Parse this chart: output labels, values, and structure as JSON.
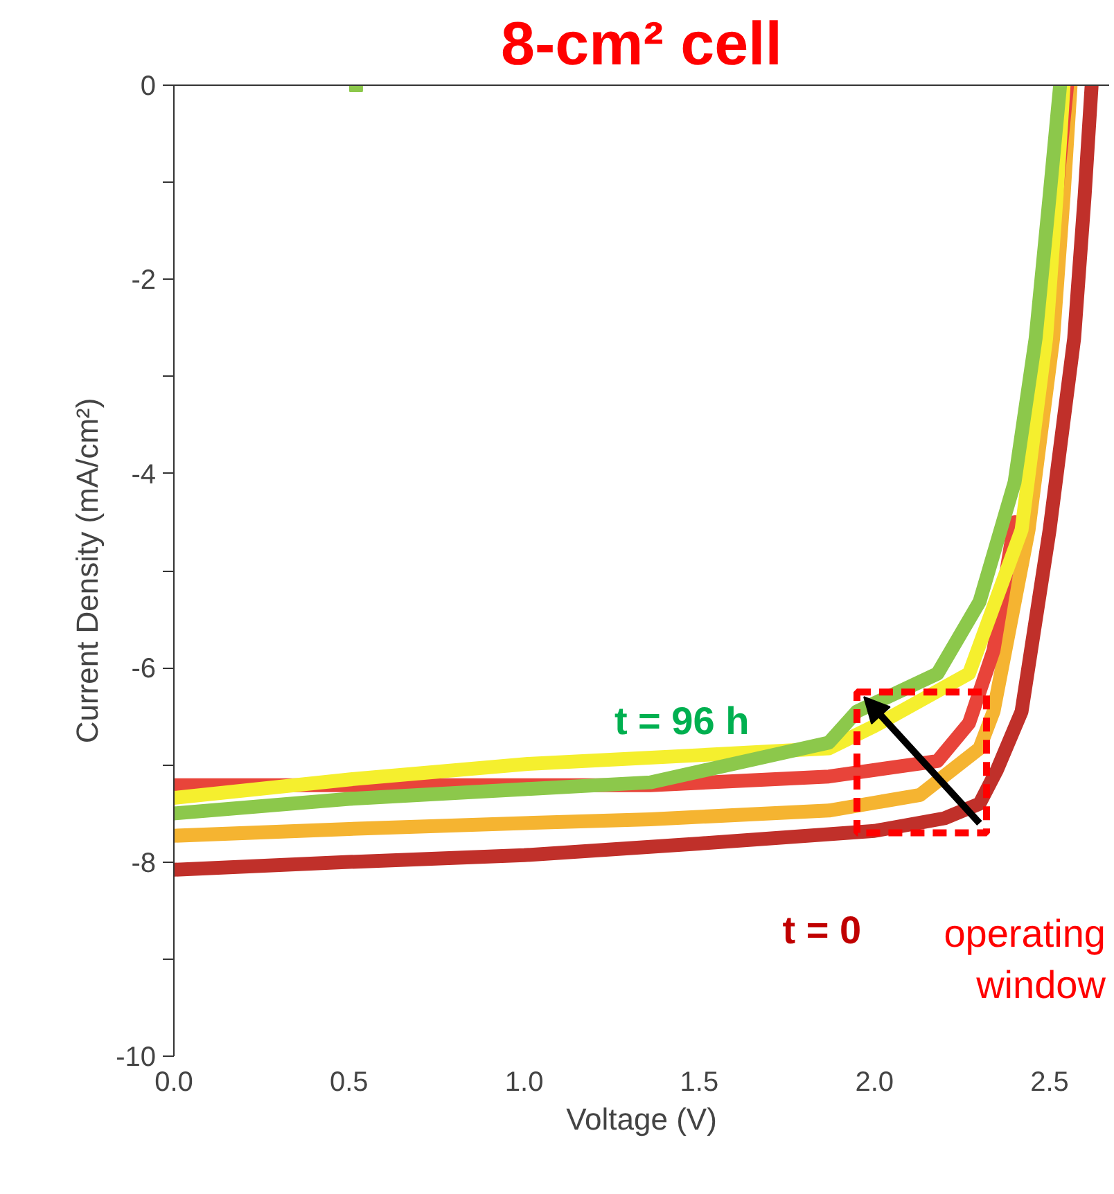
{
  "chart_data": {
    "type": "line",
    "title": "8-cm² cell",
    "xlabel": "Voltage (V)",
    "ylabel": "Current Density (mA/cm²)",
    "xlim": [
      0,
      2.67
    ],
    "ylim": [
      -10,
      0
    ],
    "xticks": [
      {
        "value": 0,
        "label": "0.0"
      },
      {
        "value": 0.5,
        "label": "0.5"
      },
      {
        "value": 1,
        "label": "1.0"
      },
      {
        "value": 1.5,
        "label": "1.5"
      },
      {
        "value": 2,
        "label": "2.0"
      },
      {
        "value": 2.5,
        "label": "2.5"
      }
    ],
    "yticks": [
      -10,
      {
        "value": -9,
        "label": null
      },
      -8,
      {
        "value": -7,
        "label": null
      },
      -6,
      {
        "value": -5,
        "label": null
      },
      -4,
      {
        "value": -3,
        "label": null
      },
      -2,
      {
        "value": -1,
        "label": null
      },
      0
    ],
    "grid": false,
    "line_style": "solid",
    "series": [
      {
        "color": "#c0302a",
        "x": [
          0,
          0.5,
          1.0,
          1.5,
          2.0,
          2.2,
          2.3,
          2.35,
          2.42,
          2.5,
          2.57,
          2.6,
          2.62
        ],
        "values": [
          -8.08,
          -8.0,
          -7.93,
          -7.81,
          -7.68,
          -7.55,
          -7.4,
          -7.05,
          -6.45,
          -4.58,
          -2.61,
          -1.14,
          0
        ]
      },
      {
        "color": "#f5b431",
        "x": [
          0,
          0.5,
          1.0,
          1.36,
          1.87,
          2.13,
          2.3,
          2.34,
          2.44,
          2.51,
          2.54,
          2.56
        ],
        "values": [
          -7.73,
          -7.66,
          -7.6,
          -7.56,
          -7.47,
          -7.31,
          -6.83,
          -6.45,
          -4.58,
          -2.61,
          -1.14,
          0
        ]
      },
      {
        "color": "#e8443a",
        "x": [
          0,
          0.5,
          1.0,
          1.36,
          1.87,
          2.18,
          2.27,
          2.34,
          2.4,
          2.47,
          2.52,
          2.55
        ],
        "values": [
          -7.21,
          -7.21,
          -7.21,
          -7.21,
          -7.12,
          -6.96,
          -6.57,
          -5.82,
          -4.5,
          null,
          -1.1,
          0
        ]
      },
      {
        "color": "#f5ef2e",
        "x": [
          0,
          0.5,
          1.01,
          1.5,
          1.87,
          2.0,
          2.27,
          2.42,
          2.49,
          2.52,
          2.54
        ],
        "values": [
          -7.34,
          -7.15,
          -6.99,
          -6.9,
          -6.83,
          -6.6,
          -6.06,
          -4.58,
          -2.61,
          -1.14,
          0
        ]
      },
      {
        "color": "#8cc84b",
        "x": [
          0,
          0.5,
          1.0,
          1.36,
          1.87,
          1.95,
          2.18,
          2.3,
          2.4,
          2.46,
          2.5,
          2.53
        ],
        "values": [
          -7.5,
          -7.35,
          -7.25,
          -7.18,
          -6.77,
          -6.45,
          -6.06,
          -5.32,
          -4.09,
          -2.61,
          -1.14,
          0
        ]
      },
      {
        "type": "scatter",
        "marker": "square",
        "color": "#8cc84b",
        "x": [
          0.52
        ],
        "values": [
          0
        ]
      }
    ],
    "annotations": [
      "t = 96 h",
      "t = 0",
      "operating\nwindow"
    ]
  }
}
